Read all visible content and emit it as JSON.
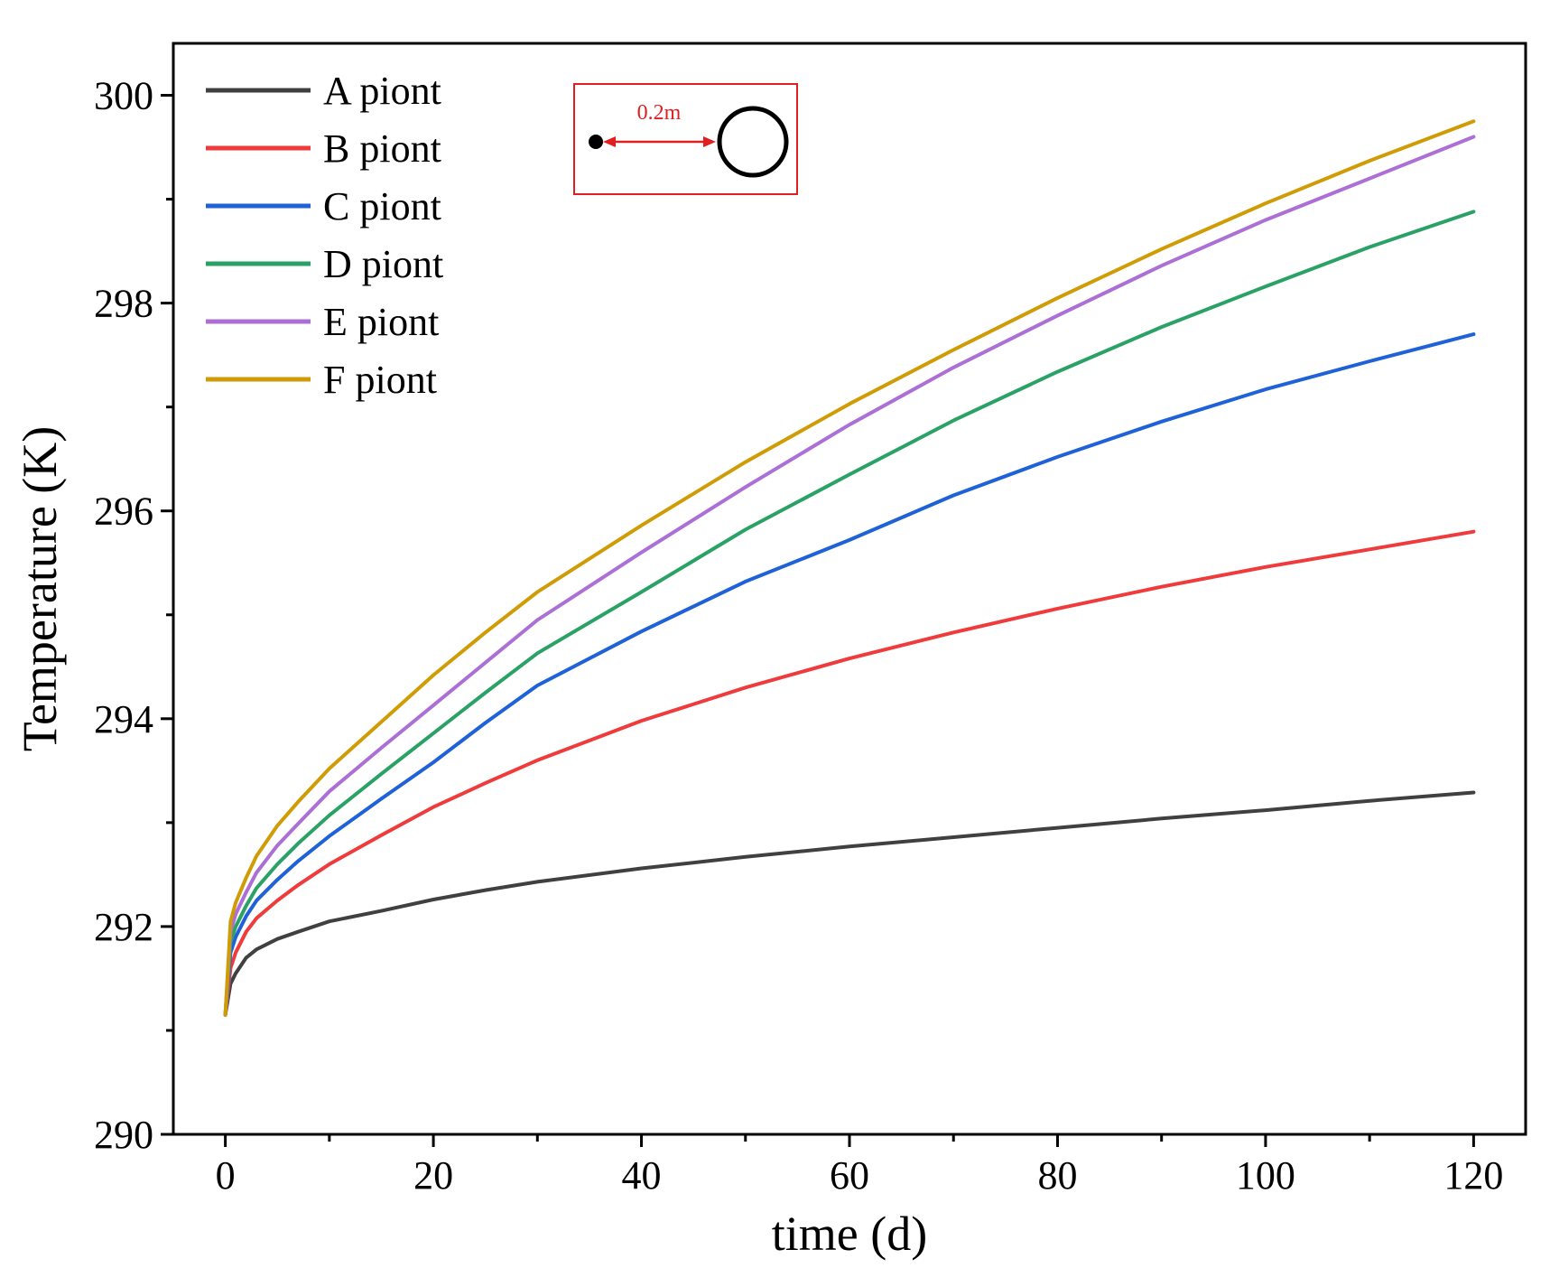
{
  "chart_data": {
    "type": "line",
    "xlabel": "time (d)",
    "ylabel": "Temperature (K)",
    "xlim": [
      -5,
      125
    ],
    "ylim": [
      290,
      300.5
    ],
    "xticks": [
      0,
      20,
      40,
      60,
      80,
      100,
      120
    ],
    "yticks": [
      290,
      292,
      294,
      296,
      298,
      300
    ],
    "grid": false,
    "legend_position": "top-left",
    "x": [
      0,
      0.5,
      1,
      2,
      3,
      5,
      7,
      10,
      15,
      20,
      25,
      30,
      40,
      50,
      60,
      70,
      80,
      90,
      100,
      110,
      120
    ],
    "series": [
      {
        "name": "A piont",
        "color": "#404040",
        "values": [
          291.15,
          291.45,
          291.55,
          291.7,
          291.78,
          291.88,
          291.95,
          292.05,
          292.15,
          292.26,
          292.35,
          292.43,
          292.56,
          292.67,
          292.77,
          292.86,
          292.95,
          293.04,
          293.12,
          293.21,
          293.29
        ]
      },
      {
        "name": "B piont",
        "color": "#ef3b3b",
        "values": [
          291.15,
          291.6,
          291.75,
          291.95,
          292.08,
          292.25,
          292.4,
          292.6,
          292.88,
          293.15,
          293.38,
          293.6,
          293.98,
          294.3,
          294.58,
          294.83,
          295.06,
          295.27,
          295.46,
          295.63,
          295.8
        ]
      },
      {
        "name": "C piont",
        "color": "#1f62d8",
        "values": [
          291.15,
          291.75,
          291.9,
          292.1,
          292.25,
          292.45,
          292.63,
          292.87,
          293.23,
          293.58,
          293.96,
          294.32,
          294.84,
          295.32,
          295.72,
          296.15,
          296.52,
          296.86,
          297.17,
          297.44,
          297.7
        ]
      },
      {
        "name": "D piont",
        "color": "#2aa266",
        "values": [
          291.15,
          291.85,
          292.0,
          292.2,
          292.37,
          292.6,
          292.8,
          293.07,
          293.47,
          293.86,
          294.25,
          294.63,
          295.22,
          295.82,
          296.35,
          296.87,
          297.34,
          297.77,
          298.16,
          298.54,
          298.88
        ]
      },
      {
        "name": "E piont",
        "color": "#ab6fd6",
        "values": [
          291.15,
          291.95,
          292.12,
          292.33,
          292.52,
          292.78,
          292.99,
          293.3,
          293.72,
          294.13,
          294.54,
          294.95,
          295.6,
          296.23,
          296.83,
          297.38,
          297.88,
          298.36,
          298.8,
          299.2,
          299.6
        ]
      },
      {
        "name": "F piont",
        "color": "#d09c06",
        "values": [
          291.15,
          292.05,
          292.23,
          292.47,
          292.68,
          292.97,
          293.2,
          293.52,
          293.97,
          294.42,
          294.83,
          295.22,
          295.86,
          296.47,
          297.03,
          297.55,
          298.05,
          298.52,
          298.96,
          299.37,
          299.75
        ]
      }
    ],
    "inset": {
      "distance_label": "0.2m",
      "frame_color": "#e02020",
      "arrow_color": "#e02020"
    }
  }
}
